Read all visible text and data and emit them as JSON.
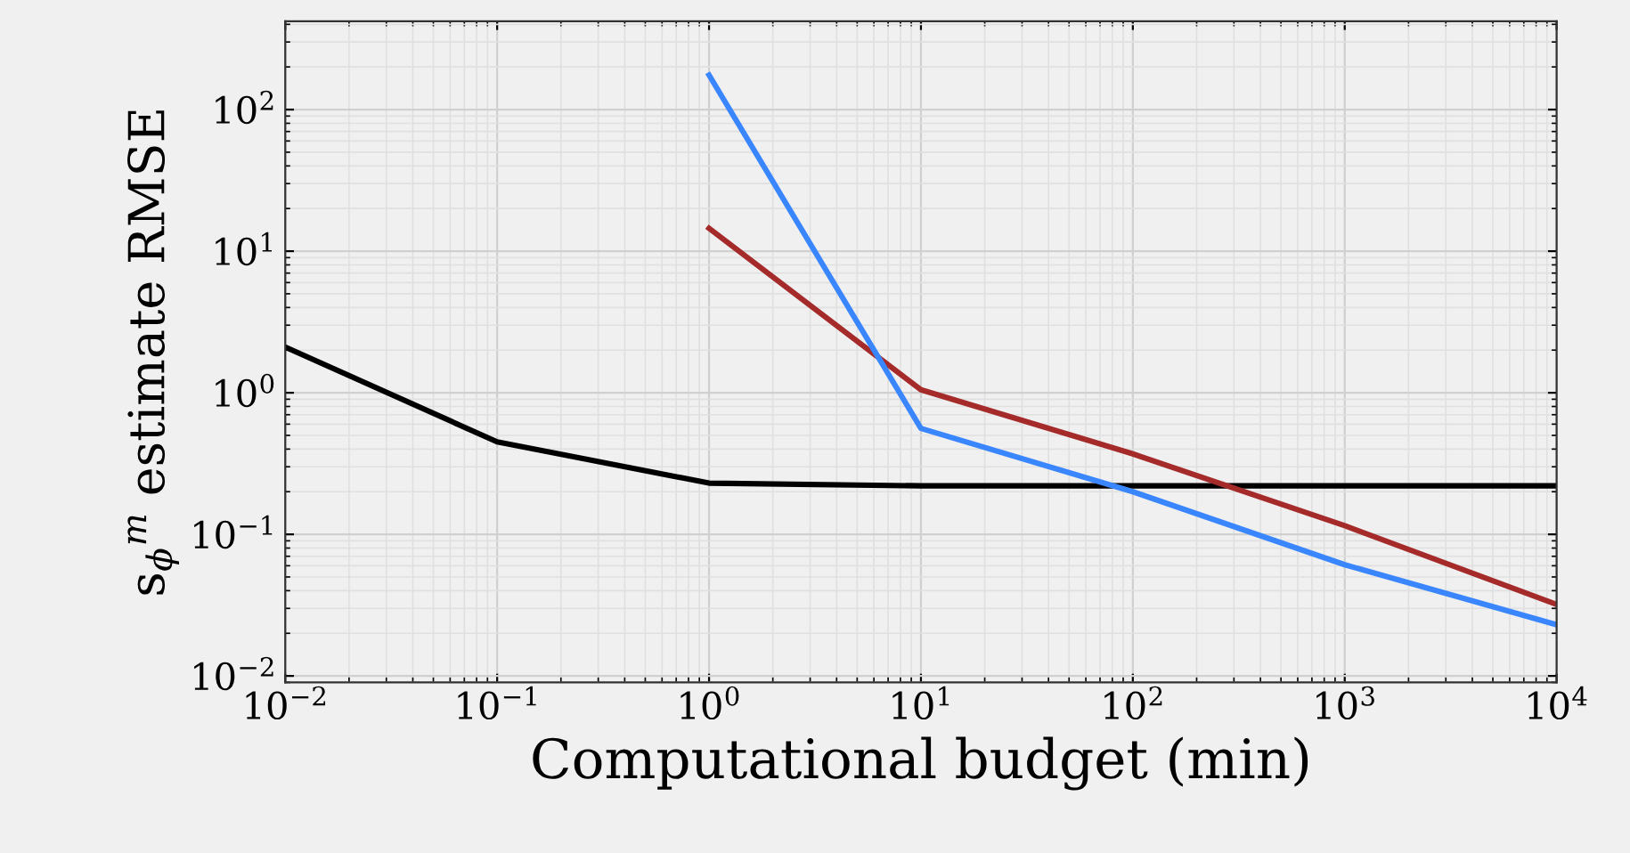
{
  "chart_data": {
    "type": "line",
    "xlabel": "Computational budget (min)",
    "ylabel": "s$_{ϕ}$$^{m}$ estimate RMSE",
    "log": "xy",
    "grid": true,
    "marker": "none",
    "line_style": "solid",
    "xlim": [
      0.01,
      10000
    ],
    "ylim": [
      0.009,
      420
    ],
    "xticks": [
      {
        "value": 0.01,
        "label": "10$^{−2}$"
      },
      {
        "value": 0.1,
        "label": "10$^{−1}$"
      },
      {
        "value": 1,
        "label": "10$^{0}$"
      },
      {
        "value": 10,
        "label": "10$^{1}$"
      },
      {
        "value": 100,
        "label": "10$^{2}$"
      },
      {
        "value": 1000,
        "label": "10$^{3}$"
      },
      {
        "value": 10000,
        "label": "10$^{4}$"
      }
    ],
    "yticks": [
      {
        "value": 0.01,
        "label": "10$^{−2}$"
      },
      {
        "value": 0.1,
        "label": "10$^{−1}$"
      },
      {
        "value": 1,
        "label": "10$^{0}$"
      },
      {
        "value": 10,
        "label": "10$^{1}$"
      },
      {
        "value": 100,
        "label": "10$^{2}$"
      }
    ],
    "series": [
      {
        "color": "#000000",
        "x": [
          0.01,
          0.1,
          1,
          10,
          100,
          1000,
          10000
        ],
        "values": [
          2.1,
          0.45,
          0.23,
          0.22,
          0.22,
          0.22,
          0.22
        ]
      },
      {
        "color": "#a52a2a",
        "x": [
          1,
          10,
          100,
          1000,
          10000
        ],
        "values": [
          14.5,
          1.05,
          0.37,
          0.115,
          0.032
        ]
      },
      {
        "color": "#3a86ff",
        "x": [
          1,
          10,
          100,
          1000,
          10000
        ],
        "values": [
          175,
          0.56,
          0.2,
          0.061,
          0.023
        ]
      }
    ]
  }
}
